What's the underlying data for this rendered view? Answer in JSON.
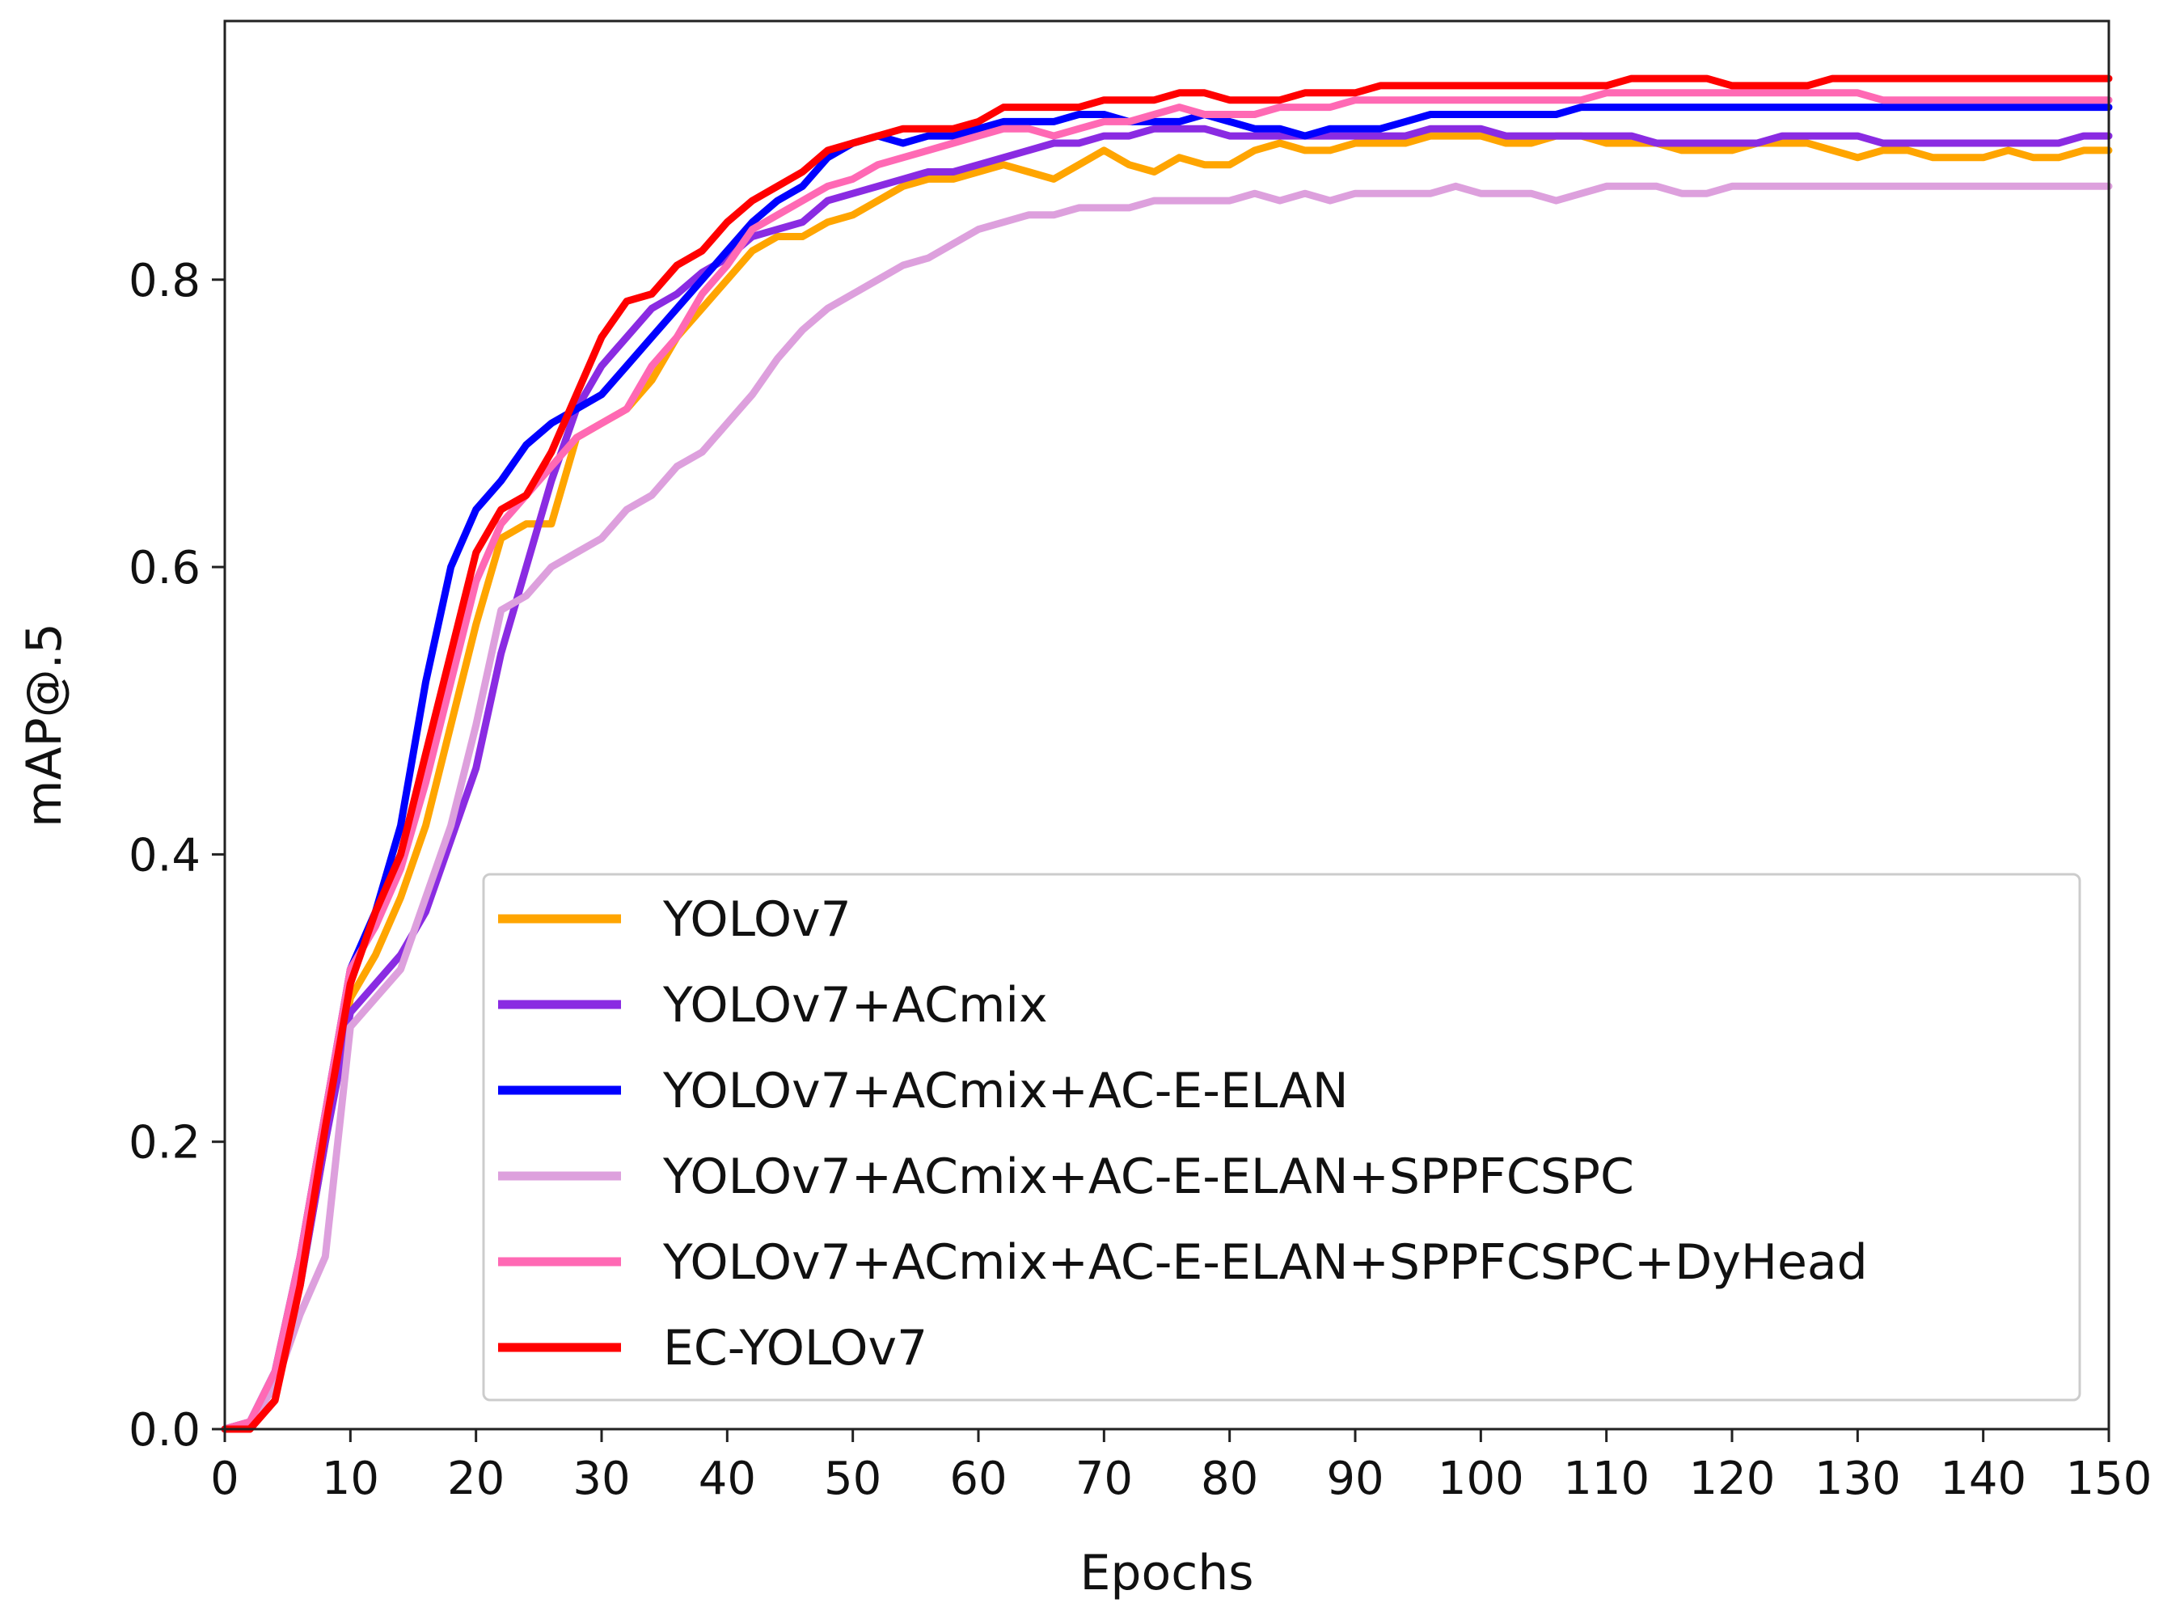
{
  "chart_data": {
    "type": "line",
    "title": "",
    "xlabel": "Epochs",
    "ylabel": "mAP@.5",
    "xlim": [
      0,
      150
    ],
    "ylim": [
      0,
      0.98
    ],
    "xticks": [
      0,
      10,
      20,
      30,
      40,
      50,
      60,
      70,
      80,
      90,
      100,
      110,
      120,
      130,
      140,
      150
    ],
    "xtick_labels": [
      "0",
      "10",
      "20",
      "30",
      "40",
      "50",
      "60",
      "70",
      "80",
      "90",
      "100",
      "110",
      "120",
      "130",
      "140",
      "150"
    ],
    "yticks": [
      0.0,
      0.2,
      0.4,
      0.6,
      0.8
    ],
    "ytick_labels": [
      "0.0",
      "0.2",
      "0.4",
      "0.6",
      "0.8"
    ],
    "grid": false,
    "legend_position": "lower-right",
    "x": [
      0,
      2,
      4,
      6,
      8,
      10,
      12,
      14,
      16,
      18,
      20,
      22,
      24,
      26,
      28,
      30,
      32,
      34,
      36,
      38,
      40,
      42,
      44,
      46,
      48,
      50,
      52,
      54,
      56,
      58,
      60,
      62,
      64,
      66,
      68,
      70,
      72,
      74,
      76,
      78,
      80,
      82,
      84,
      86,
      88,
      90,
      92,
      94,
      96,
      98,
      100,
      102,
      104,
      106,
      108,
      110,
      112,
      114,
      116,
      118,
      120,
      122,
      124,
      126,
      128,
      130,
      132,
      134,
      136,
      138,
      140,
      142,
      144,
      146,
      148,
      150
    ],
    "series": [
      {
        "name": "YOLOv7",
        "color": "#FFA500",
        "values": [
          0.0,
          0.005,
          0.03,
          0.1,
          0.2,
          0.3,
          0.33,
          0.37,
          0.42,
          0.49,
          0.56,
          0.62,
          0.63,
          0.63,
          0.69,
          0.7,
          0.71,
          0.73,
          0.76,
          0.78,
          0.8,
          0.82,
          0.83,
          0.83,
          0.84,
          0.845,
          0.855,
          0.865,
          0.87,
          0.87,
          0.875,
          0.88,
          0.875,
          0.87,
          0.88,
          0.89,
          0.88,
          0.875,
          0.885,
          0.88,
          0.88,
          0.89,
          0.895,
          0.89,
          0.89,
          0.895,
          0.895,
          0.895,
          0.9,
          0.9,
          0.9,
          0.895,
          0.895,
          0.9,
          0.9,
          0.895,
          0.895,
          0.895,
          0.89,
          0.89,
          0.89,
          0.895,
          0.895,
          0.895,
          0.89,
          0.885,
          0.89,
          0.89,
          0.885,
          0.885,
          0.885,
          0.89,
          0.885,
          0.885,
          0.89,
          0.89
        ]
      },
      {
        "name": "YOLOv7+ACmix",
        "color": "#8A2BE2",
        "values": [
          0.0,
          0.005,
          0.03,
          0.1,
          0.2,
          0.29,
          0.31,
          0.33,
          0.36,
          0.41,
          0.46,
          0.54,
          0.6,
          0.66,
          0.71,
          0.74,
          0.76,
          0.78,
          0.79,
          0.805,
          0.815,
          0.83,
          0.835,
          0.84,
          0.855,
          0.86,
          0.865,
          0.87,
          0.875,
          0.875,
          0.88,
          0.885,
          0.89,
          0.895,
          0.895,
          0.9,
          0.9,
          0.905,
          0.905,
          0.905,
          0.9,
          0.9,
          0.9,
          0.9,
          0.9,
          0.9,
          0.9,
          0.9,
          0.905,
          0.905,
          0.905,
          0.9,
          0.9,
          0.9,
          0.9,
          0.9,
          0.9,
          0.895,
          0.895,
          0.895,
          0.895,
          0.895,
          0.9,
          0.9,
          0.9,
          0.9,
          0.895,
          0.895,
          0.895,
          0.895,
          0.895,
          0.895,
          0.895,
          0.895,
          0.9,
          0.9
        ]
      },
      {
        "name": "YOLOv7+ACmix+AC-E-ELAN",
        "color": "#0000FF",
        "values": [
          0.0,
          0.005,
          0.04,
          0.12,
          0.22,
          0.32,
          0.36,
          0.42,
          0.52,
          0.6,
          0.64,
          0.66,
          0.685,
          0.7,
          0.71,
          0.72,
          0.74,
          0.76,
          0.78,
          0.8,
          0.82,
          0.84,
          0.855,
          0.865,
          0.885,
          0.895,
          0.9,
          0.895,
          0.9,
          0.9,
          0.905,
          0.91,
          0.91,
          0.91,
          0.915,
          0.915,
          0.91,
          0.91,
          0.91,
          0.915,
          0.91,
          0.905,
          0.905,
          0.9,
          0.905,
          0.905,
          0.905,
          0.91,
          0.915,
          0.915,
          0.915,
          0.915,
          0.915,
          0.915,
          0.92,
          0.92,
          0.92,
          0.92,
          0.92,
          0.92,
          0.92,
          0.92,
          0.92,
          0.92,
          0.92,
          0.92,
          0.92,
          0.92,
          0.92,
          0.92,
          0.92,
          0.92,
          0.92,
          0.92,
          0.92,
          0.92
        ]
      },
      {
        "name": "YOLOv7+ACmix+AC-E-ELAN+SPPFCSPC",
        "color": "#DDA0DD",
        "values": [
          0.0,
          0.005,
          0.03,
          0.08,
          0.12,
          0.28,
          0.3,
          0.32,
          0.37,
          0.42,
          0.49,
          0.57,
          0.58,
          0.6,
          0.61,
          0.62,
          0.64,
          0.65,
          0.67,
          0.68,
          0.7,
          0.72,
          0.745,
          0.765,
          0.78,
          0.79,
          0.8,
          0.81,
          0.815,
          0.825,
          0.835,
          0.84,
          0.845,
          0.845,
          0.85,
          0.85,
          0.85,
          0.855,
          0.855,
          0.855,
          0.855,
          0.86,
          0.855,
          0.86,
          0.855,
          0.86,
          0.86,
          0.86,
          0.86,
          0.865,
          0.86,
          0.86,
          0.86,
          0.855,
          0.86,
          0.865,
          0.865,
          0.865,
          0.86,
          0.86,
          0.865,
          0.865,
          0.865,
          0.865,
          0.865,
          0.865,
          0.865,
          0.865,
          0.865,
          0.865,
          0.865,
          0.865,
          0.865,
          0.865,
          0.865,
          0.865
        ]
      },
      {
        "name": "YOLOv7+ACmix+AC-E-ELAN+SPPFCSPC+DyHead",
        "color": "#FF69B4",
        "values": [
          0.0,
          0.005,
          0.04,
          0.12,
          0.22,
          0.32,
          0.35,
          0.39,
          0.45,
          0.52,
          0.59,
          0.63,
          0.65,
          0.67,
          0.69,
          0.7,
          0.71,
          0.74,
          0.76,
          0.79,
          0.81,
          0.835,
          0.845,
          0.855,
          0.865,
          0.87,
          0.88,
          0.885,
          0.89,
          0.895,
          0.9,
          0.905,
          0.905,
          0.9,
          0.905,
          0.91,
          0.91,
          0.915,
          0.92,
          0.915,
          0.915,
          0.915,
          0.92,
          0.92,
          0.92,
          0.925,
          0.925,
          0.925,
          0.925,
          0.925,
          0.925,
          0.925,
          0.925,
          0.925,
          0.925,
          0.93,
          0.93,
          0.93,
          0.93,
          0.93,
          0.93,
          0.93,
          0.93,
          0.93,
          0.93,
          0.93,
          0.925,
          0.925,
          0.925,
          0.925,
          0.925,
          0.925,
          0.925,
          0.925,
          0.925,
          0.925
        ]
      },
      {
        "name": "EC-YOLOv7",
        "color": "#FF0000",
        "values": [
          0.0,
          0.0,
          0.02,
          0.1,
          0.21,
          0.31,
          0.36,
          0.4,
          0.47,
          0.54,
          0.61,
          0.64,
          0.65,
          0.68,
          0.72,
          0.76,
          0.785,
          0.79,
          0.81,
          0.82,
          0.84,
          0.855,
          0.865,
          0.875,
          0.89,
          0.895,
          0.9,
          0.905,
          0.905,
          0.905,
          0.91,
          0.92,
          0.92,
          0.92,
          0.92,
          0.925,
          0.925,
          0.925,
          0.93,
          0.93,
          0.925,
          0.925,
          0.925,
          0.93,
          0.93,
          0.93,
          0.935,
          0.935,
          0.935,
          0.935,
          0.935,
          0.935,
          0.935,
          0.935,
          0.935,
          0.935,
          0.94,
          0.94,
          0.94,
          0.94,
          0.935,
          0.935,
          0.935,
          0.935,
          0.94,
          0.94,
          0.94,
          0.94,
          0.94,
          0.94,
          0.94,
          0.94,
          0.94,
          0.94,
          0.94,
          0.94
        ]
      }
    ]
  }
}
